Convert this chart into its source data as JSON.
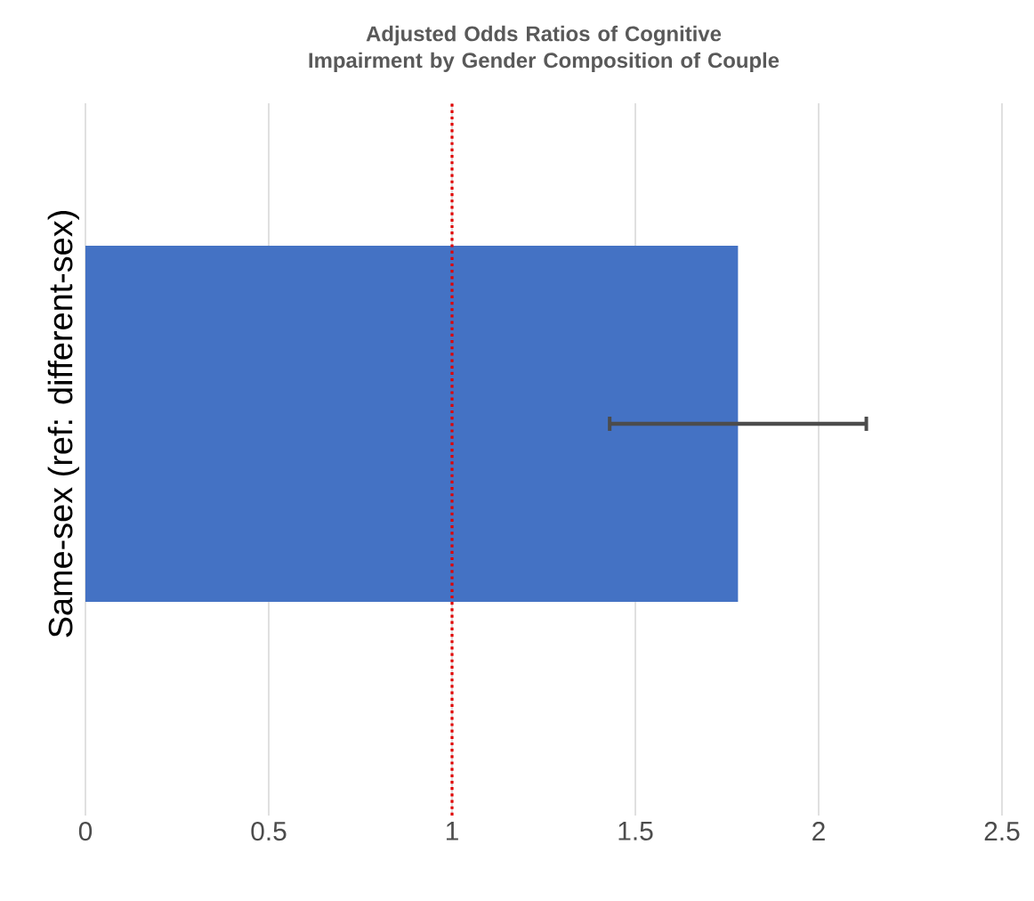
{
  "chart_data": {
    "type": "bar",
    "orientation": "horizontal",
    "title": "Adjusted Odds Ratios of Cognitive Impairment by Gender Composition of Couple",
    "categories": [
      "Same-sex (ref: different-sex)"
    ],
    "values": [
      1.78
    ],
    "color": "#4472c4",
    "errors": [
      [
        1.43,
        2.13
      ]
    ],
    "xlim": [
      0,
      2.5
    ],
    "xticks": [
      0,
      0.5,
      1,
      1.5,
      2,
      2.5
    ],
    "grid": "x",
    "ref_lines": [
      {
        "axis": "x",
        "value": 1,
        "color": "#e00000",
        "line_style": "dotted"
      }
    ]
  }
}
